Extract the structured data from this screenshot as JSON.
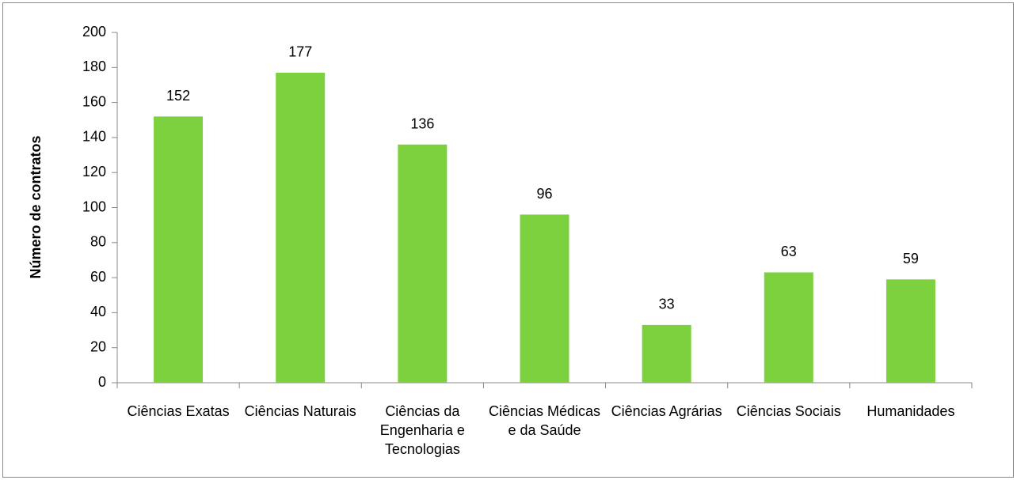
{
  "chart_data": {
    "type": "bar",
    "y_label": "Número de contratos",
    "categories": [
      "Ciências Exatas",
      "Ciências Naturais",
      "Ciências da Engenharia e Tecnologias",
      "Ciências Médicas e da Saúde",
      "Ciências Agrárias",
      "Ciências Sociais",
      "Humanidades"
    ],
    "values": [
      152,
      177,
      136,
      96,
      33,
      63,
      59
    ],
    "color": "#7ed13e",
    "ylim": [
      0,
      200
    ],
    "yticks": [
      0,
      20,
      40,
      60,
      80,
      100,
      120,
      140,
      160,
      180,
      200
    ],
    "grid": false
  }
}
